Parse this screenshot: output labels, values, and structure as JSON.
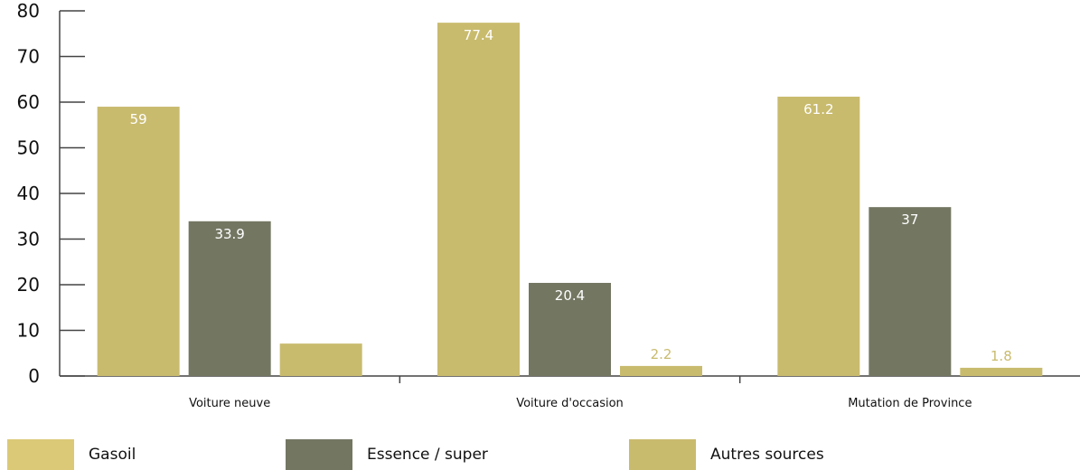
{
  "chart_data": {
    "type": "bar",
    "categories": [
      "Voiture neuve",
      "Voiture d'occasion",
      "Mutation de Province"
    ],
    "series": [
      {
        "name": "Gasoil",
        "values": [
          59,
          77.4,
          61.2
        ],
        "color": "#c9bb6e",
        "legend_color": "#dbc978",
        "label_color": "#ffffff"
      },
      {
        "name": "Essence / super",
        "values": [
          33.9,
          20.4,
          37
        ],
        "color": "#737762",
        "legend_color": "#737762",
        "label_color": "#ffffff"
      },
      {
        "name": "Autres sources",
        "values": [
          7.1,
          2.2,
          1.8
        ],
        "color": "#c9bb6e",
        "legend_color": "#c9bb6e",
        "label_color": "#c9bb6e"
      }
    ],
    "ylim": [
      0,
      80
    ],
    "yticks": [
      0,
      10,
      20,
      30,
      40,
      50,
      60,
      70,
      80
    ],
    "grid": false,
    "legend_position": "bottom",
    "axis_color": "#444444"
  }
}
